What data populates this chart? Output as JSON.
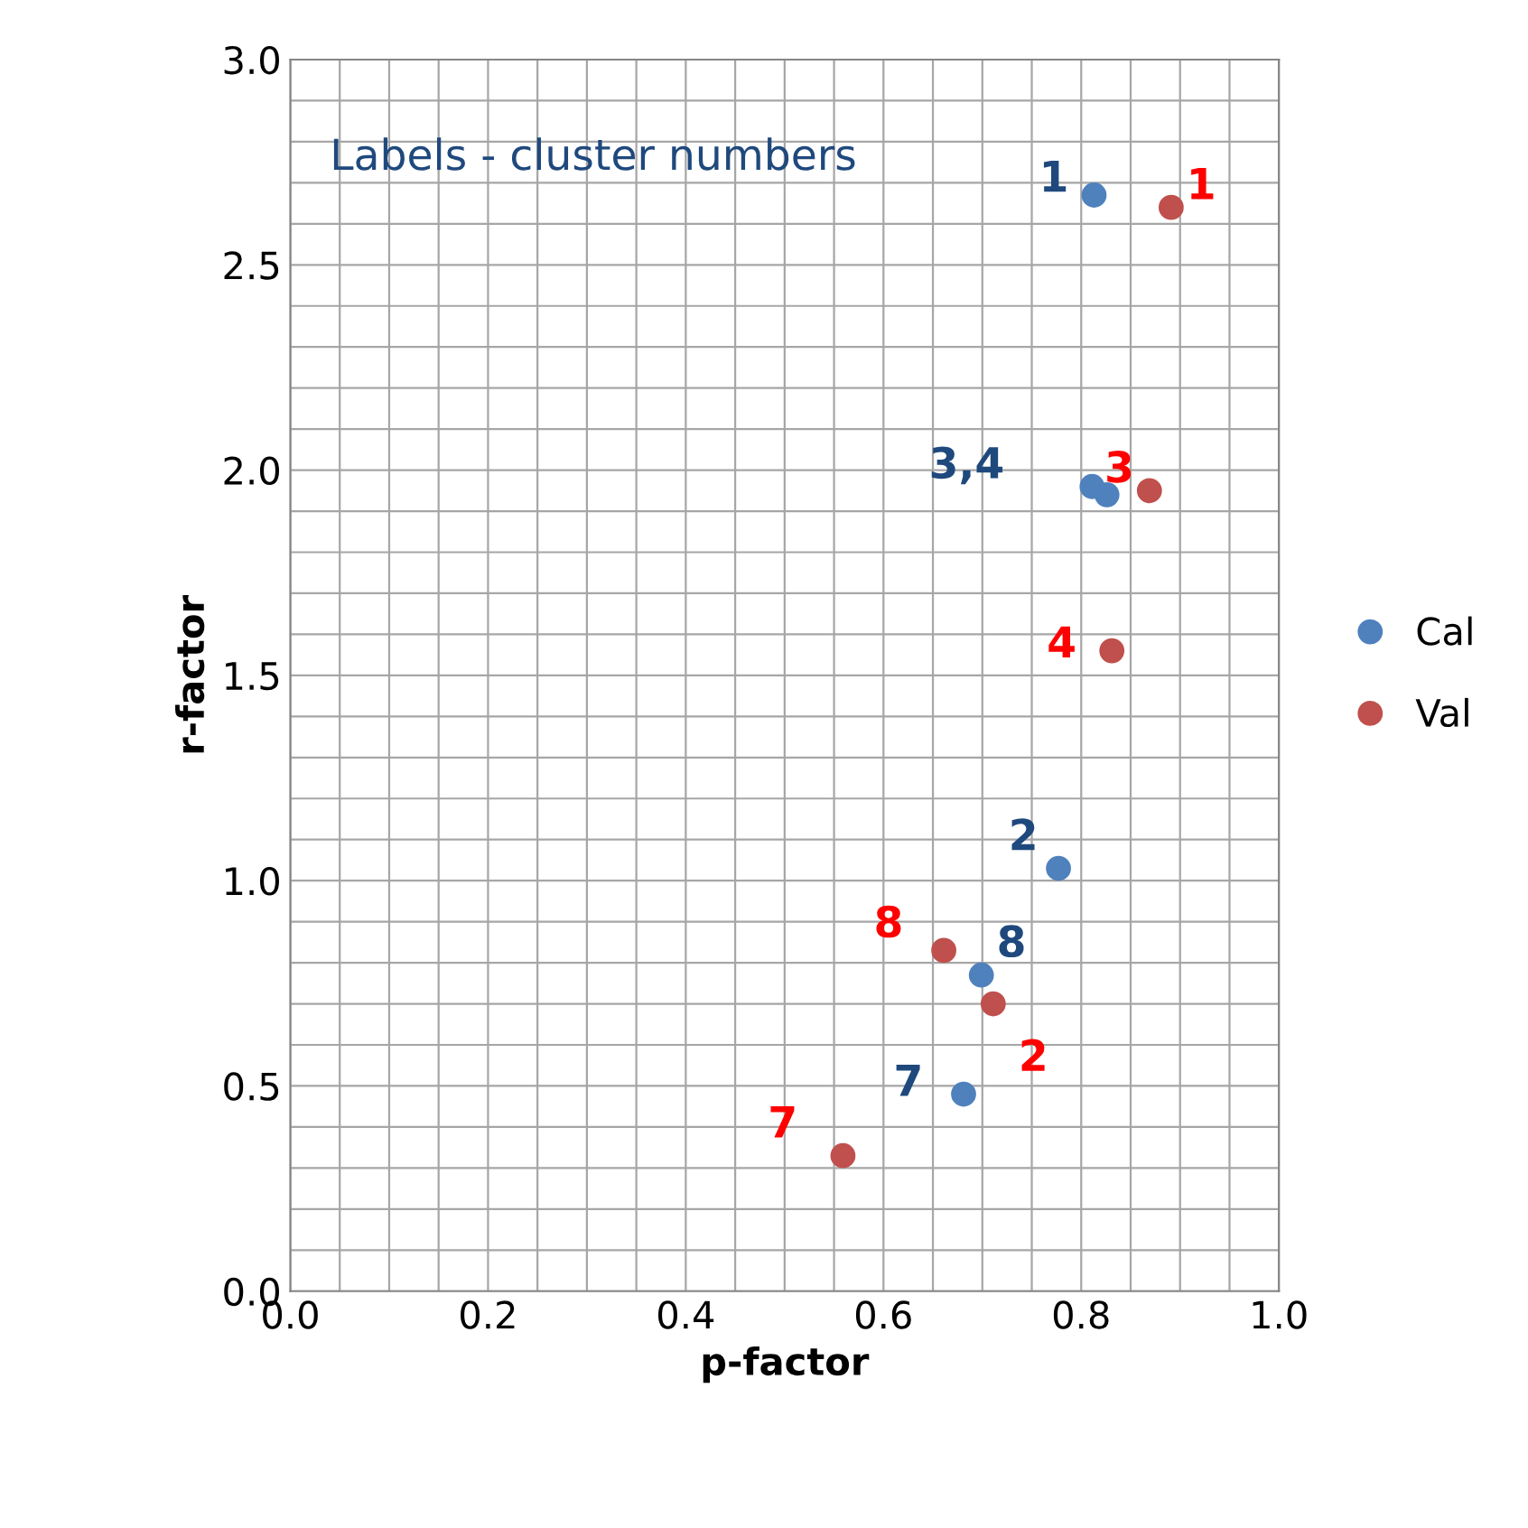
{
  "chart_data": {
    "type": "scatter",
    "xlabel": "p-factor",
    "ylabel": "r-factor",
    "annotations": [
      "Labels - cluster numbers",
      {
        "text": "1",
        "x": 0.813,
        "y": 2.67
      },
      {
        "text": "3,4",
        "x": 0.811,
        "y": 1.96
      },
      {
        "text": "2",
        "x": 0.777,
        "y": 1.03
      },
      {
        "text": "8",
        "x": 0.699,
        "y": 0.77
      },
      {
        "text": "7",
        "x": 0.681,
        "y": 0.48
      },
      {
        "text": "1",
        "x": 0.891,
        "y": 2.64
      },
      {
        "text": "3",
        "x": 0.869,
        "y": 1.95
      },
      {
        "text": "4",
        "x": 0.831,
        "y": 1.56
      },
      {
        "text": "8",
        "x": 0.661,
        "y": 0.83
      },
      {
        "text": "2",
        "x": 0.711,
        "y": 0.7
      },
      {
        "text": "7",
        "x": 0.559,
        "y": 0.33
      }
    ],
    "xlim": [
      0,
      1
    ],
    "ylim": [
      0,
      3
    ],
    "xticks": [
      {
        "value": 0,
        "label": "0.0"
      },
      {
        "value": 0.2,
        "label": "0.2"
      },
      {
        "value": 0.4,
        "label": "0.4"
      },
      {
        "value": 0.6,
        "label": "0.6"
      },
      {
        "value": 0.8,
        "label": "0.8"
      },
      {
        "value": 1,
        "label": "1.0"
      }
    ],
    "yticks": [
      {
        "value": 0,
        "label": "0.0"
      },
      {
        "value": 0.5,
        "label": "0.5"
      },
      {
        "value": 1,
        "label": "1.0"
      },
      {
        "value": 1.5,
        "label": "1.5"
      },
      {
        "value": 2,
        "label": "2.0"
      },
      {
        "value": 2.5,
        "label": "2.5"
      },
      {
        "value": 3,
        "label": "3.0"
      }
    ],
    "grid": true,
    "legend": "right",
    "marker": "circle",
    "series": [
      {
        "name": "Cal",
        "color": "#4f81bd",
        "x": [
          0.813,
          0.811,
          0.826,
          0.777,
          0.699,
          0.681
        ],
        "values": [
          2.67,
          1.96,
          1.94,
          1.03,
          0.77,
          0.48
        ]
      },
      {
        "name": "Val",
        "color": "#c0504d",
        "x": [
          0.891,
          0.869,
          0.831,
          0.661,
          0.711,
          0.559
        ],
        "values": [
          2.64,
          1.95,
          1.56,
          0.83,
          0.7,
          0.33
        ]
      }
    ]
  }
}
